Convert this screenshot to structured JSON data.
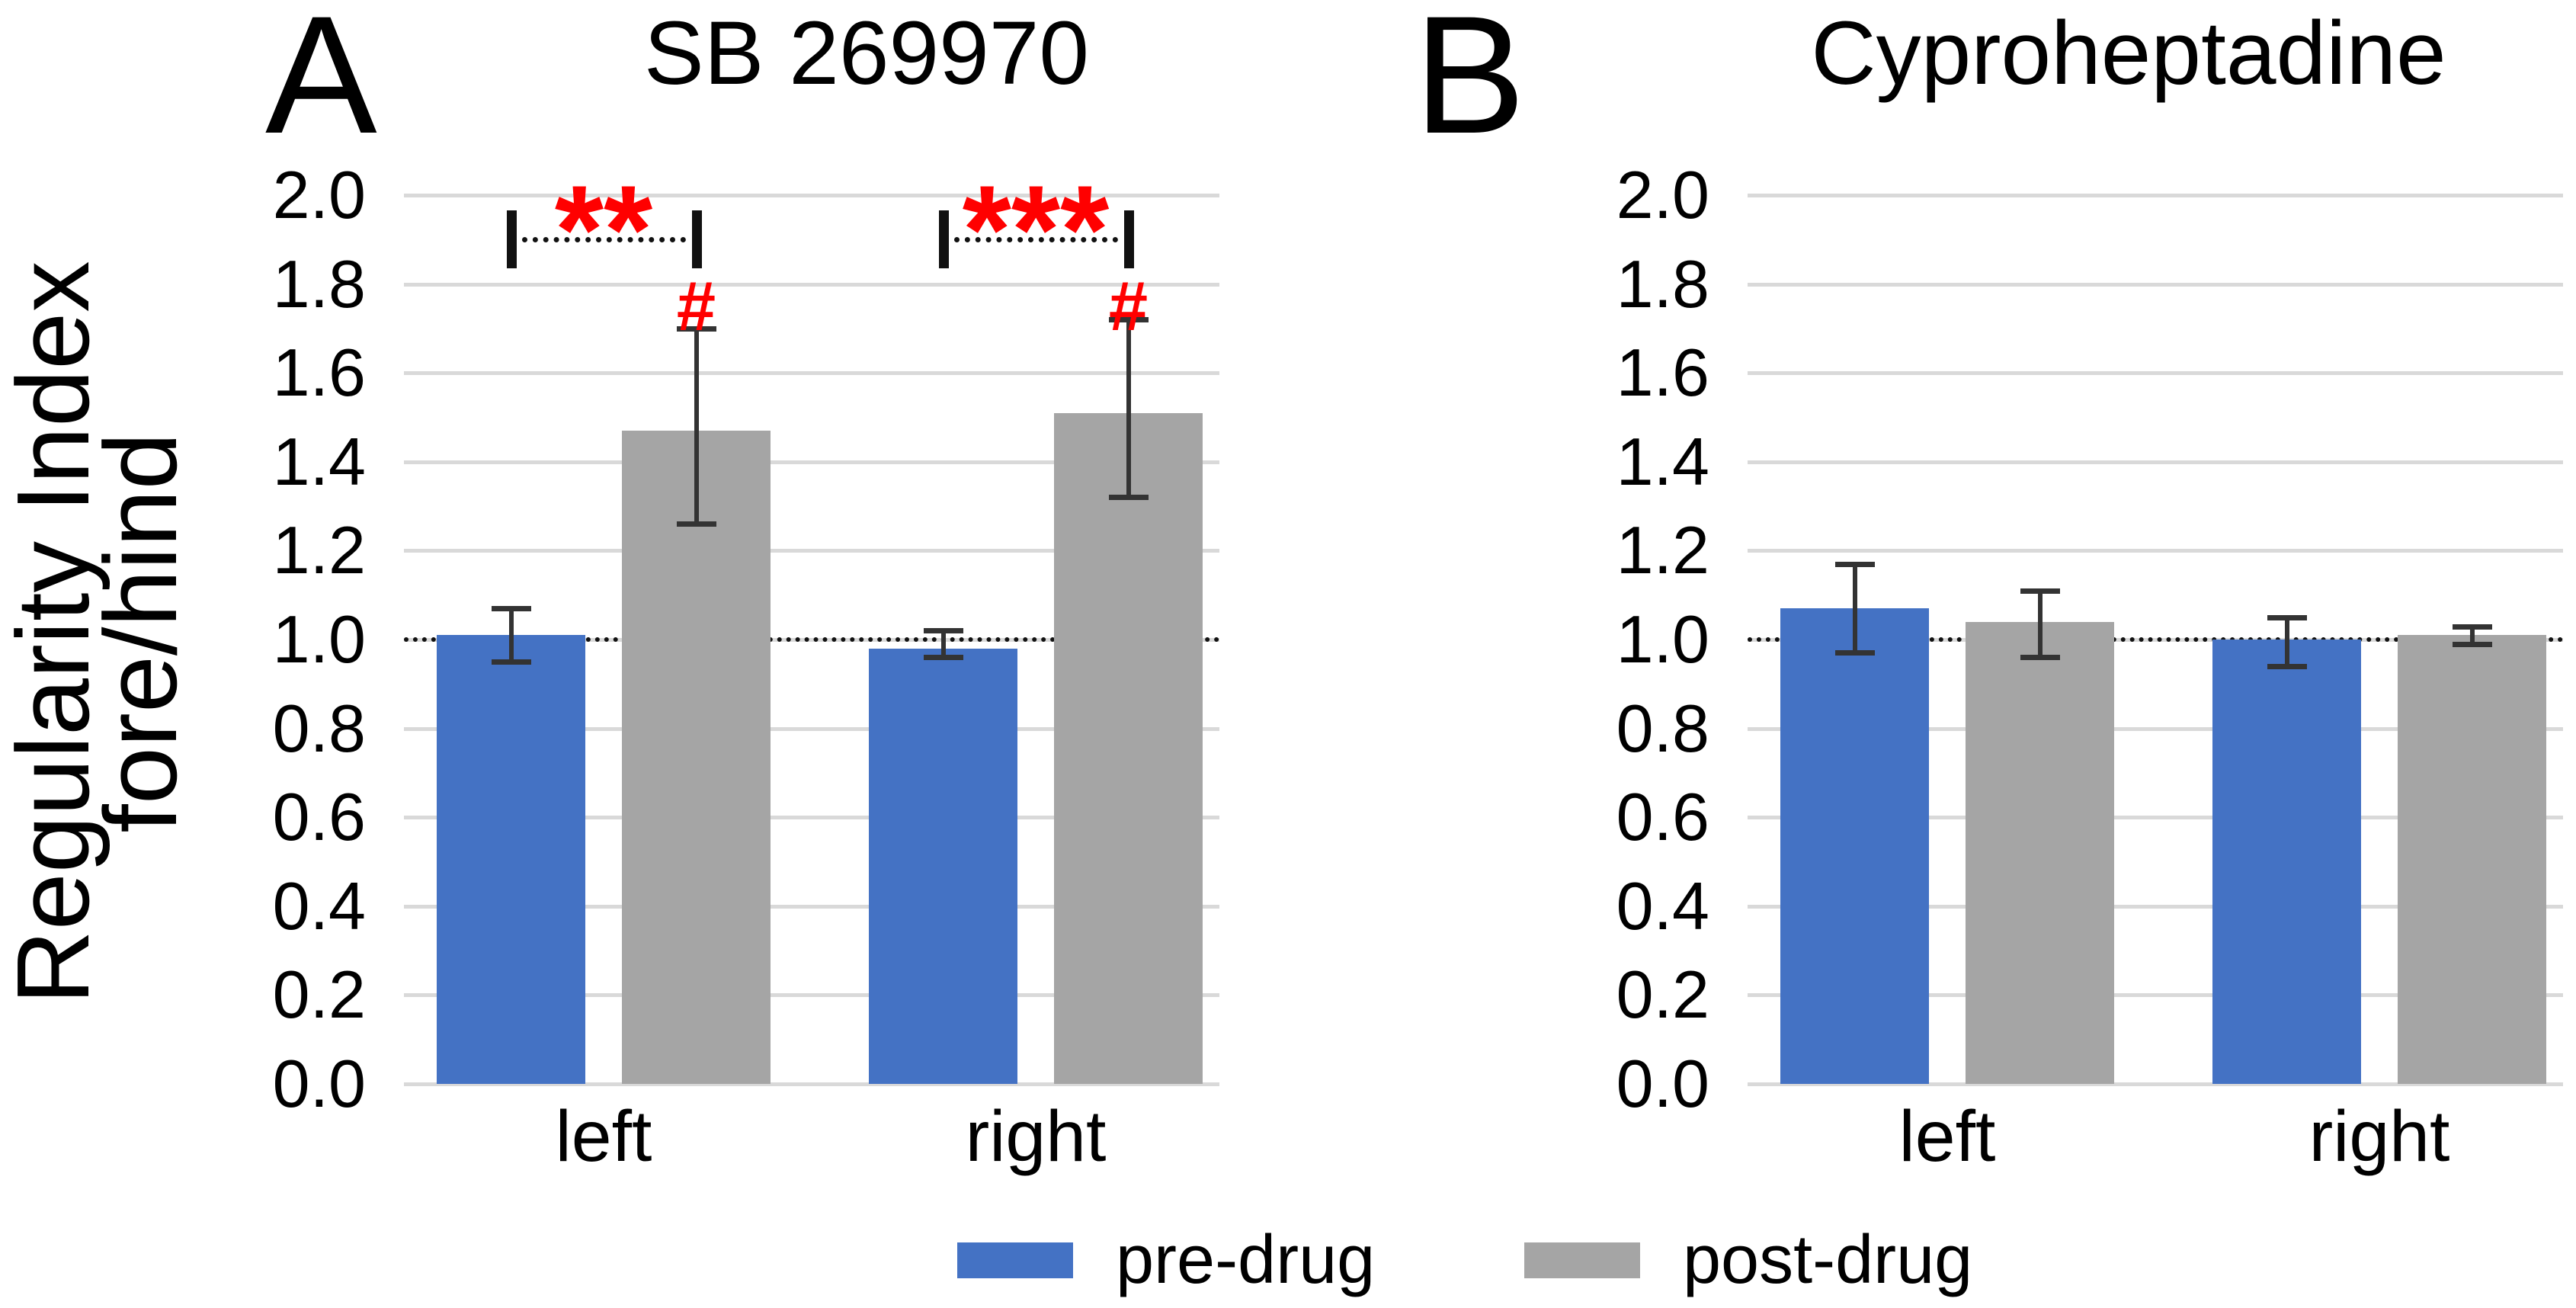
{
  "figure": {
    "y_axis_label": [
      "Regularity Index",
      "fore/hind"
    ],
    "legend": [
      {
        "label": "pre-drug",
        "color": "#4472C4"
      },
      {
        "label": "post-drug",
        "color": "#A5A5A5"
      }
    ],
    "colors": {
      "pre_drug_blue": "#4472C4",
      "post_drug_gray": "#A5A5A5",
      "significance_red": "#FF0000",
      "gridline_gray": "#D9D9D9",
      "error_bar": "#333333"
    }
  },
  "chart_data": [
    {
      "type": "bar",
      "panel_letter": "A",
      "title": "SB 269970",
      "categories": [
        "left",
        "right"
      ],
      "series": [
        {
          "name": "pre-drug",
          "color": "#4472C4",
          "values": [
            1.01,
            0.98
          ],
          "err_low": [
            0.95,
            0.96
          ],
          "err_high": [
            1.07,
            1.02
          ]
        },
        {
          "name": "post-drug",
          "color": "#A5A5A5",
          "values": [
            1.47,
            1.51
          ],
          "err_low": [
            1.26,
            1.32
          ],
          "err_high": [
            1.7,
            1.72
          ]
        }
      ],
      "ylabel": "Regularity Index fore/hind",
      "ylim": [
        0.0,
        2.0
      ],
      "yticks": [
        "0.0",
        "0.2",
        "0.4",
        "0.6",
        "0.8",
        "1.0",
        "1.2",
        "1.4",
        "1.6",
        "1.8",
        "2.0"
      ],
      "grid": true,
      "reference_line": 1.0,
      "legend_position": "bottom",
      "annotations": {
        "comparisons": [
          {
            "category": "left",
            "between": [
              "pre-drug",
              "post-drug"
            ],
            "label": "**",
            "bracket_y": 1.9,
            "color": "#FF0000"
          },
          {
            "category": "right",
            "between": [
              "pre-drug",
              "post-drug"
            ],
            "label": "***",
            "bracket_y": 1.9,
            "color": "#FF0000"
          }
        ],
        "bar_marks": [
          {
            "category": "left",
            "series": "post-drug",
            "label": "#",
            "color": "#FF0000"
          },
          {
            "category": "right",
            "series": "post-drug",
            "label": "#",
            "color": "#FF0000"
          }
        ]
      }
    },
    {
      "type": "bar",
      "panel_letter": "B",
      "title": "Cyproheptadine",
      "categories": [
        "left",
        "right"
      ],
      "series": [
        {
          "name": "pre-drug",
          "color": "#4472C4",
          "values": [
            1.07,
            1.0
          ],
          "err_low": [
            0.97,
            0.94
          ],
          "err_high": [
            1.17,
            1.05
          ]
        },
        {
          "name": "post-drug",
          "color": "#A5A5A5",
          "values": [
            1.04,
            1.01
          ],
          "err_low": [
            0.96,
            0.99
          ],
          "err_high": [
            1.11,
            1.03
          ]
        }
      ],
      "ylabel": "Regularity Index fore/hind",
      "ylim": [
        0.0,
        2.0
      ],
      "yticks": [
        "0.0",
        "0.2",
        "0.4",
        "0.6",
        "0.8",
        "1.0",
        "1.2",
        "1.4",
        "1.6",
        "1.8",
        "2.0"
      ],
      "grid": true,
      "reference_line": 1.0,
      "legend_position": "bottom",
      "annotations": {
        "comparisons": [],
        "bar_marks": []
      }
    }
  ]
}
